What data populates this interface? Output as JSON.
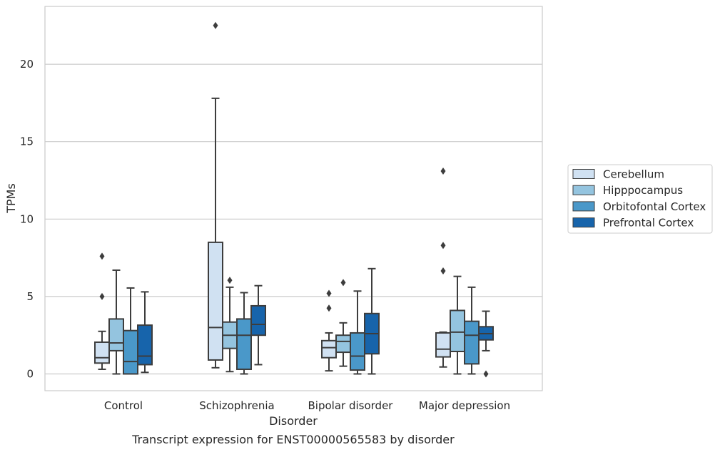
{
  "chart_data": {
    "type": "box",
    "title": "",
    "caption": "Transcript expression for ENST00000565583 by disorder",
    "xlabel": "Disorder",
    "ylabel": "TPMs",
    "ylim": [
      -1.1,
      23.4
    ],
    "yticks": [
      0,
      5,
      10,
      15,
      20
    ],
    "grid": "horizontal",
    "legend_position": "right",
    "categories": [
      "Control",
      "Schizophrenia",
      "Bipolar disorder",
      "Major depression"
    ],
    "series": [
      {
        "name": "Cerebellum",
        "color": "#d0e1f2",
        "boxes": [
          {
            "whislo": 0.3,
            "q1": 0.7,
            "med": 1.05,
            "q3": 2.05,
            "whishi": 2.75,
            "fliers": [
              5.0,
              7.6
            ]
          },
          {
            "whislo": 0.4,
            "q1": 0.9,
            "med": 3.0,
            "q3": 8.5,
            "whishi": 17.8,
            "fliers": [
              22.5
            ]
          },
          {
            "whislo": 0.2,
            "q1": 1.05,
            "med": 1.7,
            "q3": 2.15,
            "whishi": 2.65,
            "fliers": [
              4.25,
              5.2
            ]
          },
          {
            "whislo": 0.45,
            "q1": 1.1,
            "med": 1.6,
            "q3": 2.65,
            "whishi": 2.7,
            "fliers": [
              6.65,
              8.3,
              13.1
            ]
          }
        ]
      },
      {
        "name": "Hipppocampus",
        "color": "#94c4df",
        "boxes": [
          {
            "whislo": 0.0,
            "q1": 1.5,
            "med": 2.0,
            "q3": 3.55,
            "whishi": 6.7,
            "fliers": []
          },
          {
            "whislo": 0.15,
            "q1": 1.65,
            "med": 2.5,
            "q3": 3.35,
            "whishi": 5.6,
            "fliers": [
              6.05
            ]
          },
          {
            "whislo": 0.5,
            "q1": 1.4,
            "med": 2.1,
            "q3": 2.5,
            "whishi": 3.3,
            "fliers": [
              5.9
            ]
          },
          {
            "whislo": 0.0,
            "q1": 1.45,
            "med": 2.7,
            "q3": 4.1,
            "whishi": 6.3,
            "fliers": []
          }
        ]
      },
      {
        "name": "Orbitofontal Cortex",
        "color": "#4a98c9",
        "boxes": [
          {
            "whislo": 0.0,
            "q1": 0.0,
            "med": 0.8,
            "q3": 2.8,
            "whishi": 5.55,
            "fliers": []
          },
          {
            "whislo": 0.0,
            "q1": 0.3,
            "med": 2.5,
            "q3": 3.55,
            "whishi": 5.25,
            "fliers": []
          },
          {
            "whislo": 0.0,
            "q1": 0.25,
            "med": 1.15,
            "q3": 2.65,
            "whishi": 5.35,
            "fliers": []
          },
          {
            "whislo": 0.0,
            "q1": 0.65,
            "med": 2.5,
            "q3": 3.4,
            "whishi": 5.6,
            "fliers": []
          }
        ]
      },
      {
        "name": "Prefrontal Cortex",
        "color": "#1764ab",
        "boxes": [
          {
            "whislo": 0.1,
            "q1": 0.6,
            "med": 1.15,
            "q3": 3.15,
            "whishi": 5.3,
            "fliers": []
          },
          {
            "whislo": 0.6,
            "q1": 2.5,
            "med": 3.2,
            "q3": 4.4,
            "whishi": 5.7,
            "fliers": []
          },
          {
            "whislo": 0.0,
            "q1": 1.3,
            "med": 2.6,
            "q3": 3.9,
            "whishi": 6.8,
            "fliers": []
          },
          {
            "whislo": 1.5,
            "q1": 2.2,
            "med": 2.6,
            "q3": 3.05,
            "whishi": 4.05,
            "fliers": [
              0.0
            ]
          }
        ]
      }
    ]
  },
  "colors": {
    "grid": "#cccccc",
    "frame": "#cccccc",
    "box_edge": "#3d3d3d",
    "legend_border": "#cccccc"
  }
}
